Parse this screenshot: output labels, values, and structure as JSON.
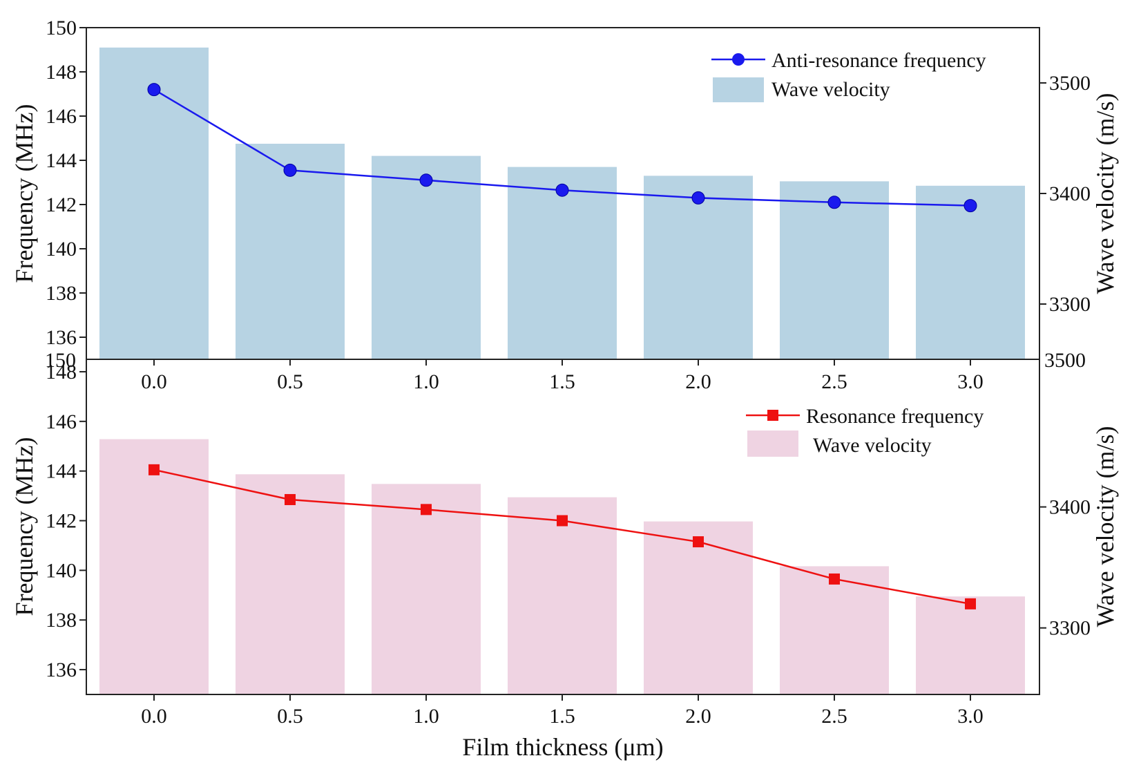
{
  "chart_data": [
    {
      "type": "bar+line",
      "categories": [
        "0.0",
        "0.5",
        "1.0",
        "1.5",
        "2.0",
        "2.5",
        "3.0"
      ],
      "x": [
        0.0,
        0.5,
        1.0,
        1.5,
        2.0,
        2.5,
        3.0
      ],
      "series": [
        {
          "name": "Anti-resonance frequency",
          "kind": "line",
          "axis": "left",
          "marker": "circle",
          "color": "#1a1aee",
          "values": [
            147.2,
            143.55,
            143.1,
            142.65,
            142.3,
            142.1,
            141.95
          ]
        },
        {
          "name": "Wave velocity",
          "kind": "bar",
          "axis": "right",
          "color": "#b7d3e3",
          "values": [
            3532,
            3445,
            3434,
            3424,
            3416,
            3411,
            3407
          ]
        }
      ],
      "xlabel": "",
      "ylabel": "Frequency (MHz)",
      "y2label": "Wave velocity (m/s)",
      "ylim": [
        135,
        150
      ],
      "yticks": [
        "136",
        "138",
        "140",
        "142",
        "144",
        "146",
        "148",
        "150"
      ],
      "y2lim": [
        3250,
        3550
      ],
      "y2ticks": [
        "3300",
        "3400",
        "3500"
      ],
      "y_bottom_label": "150",
      "y2_bottom_label": "3500",
      "legend": "top-right",
      "grid": false
    },
    {
      "type": "bar+line",
      "categories": [
        "0.0",
        "0.5",
        "1.0",
        "1.5",
        "2.0",
        "2.5",
        "3.0"
      ],
      "x": [
        0.0,
        0.5,
        1.0,
        1.5,
        2.0,
        2.5,
        3.0
      ],
      "series": [
        {
          "name": "Resonance frequency",
          "kind": "line",
          "axis": "left",
          "marker": "square",
          "color": "#ee1111",
          "values": [
            144.05,
            142.85,
            142.45,
            142.0,
            141.15,
            139.65,
            138.65
          ]
        },
        {
          "name": "Wave velocity",
          "kind": "bar",
          "axis": "right",
          "color": "#efd3e2",
          "values": [
            3456,
            3427,
            3419,
            3408,
            3388,
            3351,
            3326
          ]
        }
      ],
      "xlabel": "Film thickness (μm)",
      "ylabel": "Frequency (MHz)",
      "y2label": "Wave velocity (m/s)",
      "ylim": [
        135,
        148.5
      ],
      "yticks": [
        "136",
        "138",
        "140",
        "142",
        "144",
        "146",
        "148"
      ],
      "y2lim": [
        3245,
        3522
      ],
      "y2ticks": [
        "3300",
        "3400"
      ],
      "legend": "top-right",
      "grid": false
    }
  ]
}
